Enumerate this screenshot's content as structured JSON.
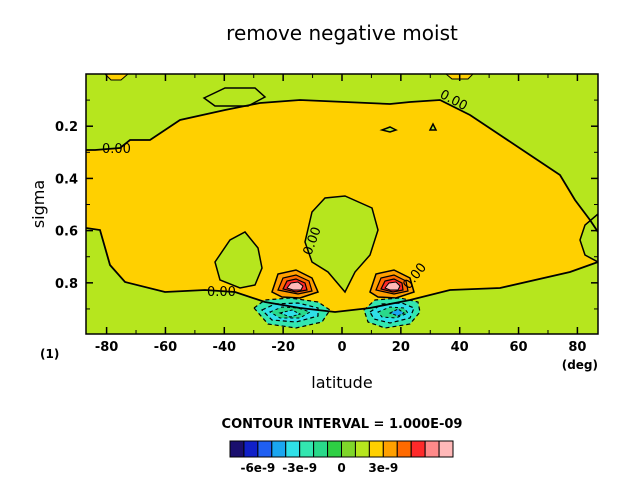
{
  "chart_data": {
    "type": "heatmap",
    "title": "remove negative moist",
    "xlabel": "latitude",
    "ylabel": "sigma",
    "x_unit": "(deg)",
    "panel_tag": "(1)",
    "xlim": [
      -87,
      87
    ],
    "ylim": [
      0.996,
      0.0
    ],
    "y_inverted": true,
    "x_ticks": [
      -80,
      -60,
      -40,
      -20,
      0,
      20,
      40,
      60,
      80
    ],
    "y_ticks": [
      0.2,
      0.4,
      0.6,
      0.8
    ],
    "x_tick_labels": [
      "-80",
      "-60",
      "-40",
      "-20",
      "0",
      "20",
      "40",
      "60",
      "80"
    ],
    "y_tick_labels": [
      "0.2",
      "0.4",
      "0.6",
      "0.8"
    ],
    "contour_interval_text": "CONTOUR INTERVAL = 1.000E-09",
    "contour_labels": [
      "0.00",
      "0.00",
      "0.00",
      "0.00",
      "0.00"
    ],
    "grid": false,
    "legend_position": "bottom",
    "colorbar": {
      "colors": [
        "#1a0f6e",
        "#1020c8",
        "#1f5ff2",
        "#1aa6f0",
        "#2fe0e8",
        "#33e6b0",
        "#29d98a",
        "#2ecf43",
        "#7fd62a",
        "#b6e61e",
        "#ffd000",
        "#ffa000",
        "#ff6a00",
        "#ff2a2a",
        "#ff8a8a",
        "#ffb8b8"
      ],
      "tick_labels": [
        "-6e-9",
        "-3e-9",
        "0",
        "3e-9"
      ],
      "tick_values": [
        -6e-09,
        -3e-09,
        0,
        3e-09
      ],
      "vmin": -8e-09,
      "vmax": 8e-09
    },
    "regions": [
      {
        "level": "0 to 1e-9",
        "color": "#ffd000",
        "desc": "positive core"
      },
      {
        "level": "-1e-9 to 0",
        "color": "#b6e61e",
        "desc": "slightly negative surrounding field"
      },
      {
        "level": "1e-9 to 4e-9",
        "color": "#ff6a00",
        "desc": "positive maxima near -20 and 20 deg, sigma 0.8"
      },
      {
        "level": "-4e-9 to -1e-9",
        "color": "#2fe0e8",
        "desc": "negative minima near -20 and 20 deg, sigma 0.9"
      }
    ]
  }
}
